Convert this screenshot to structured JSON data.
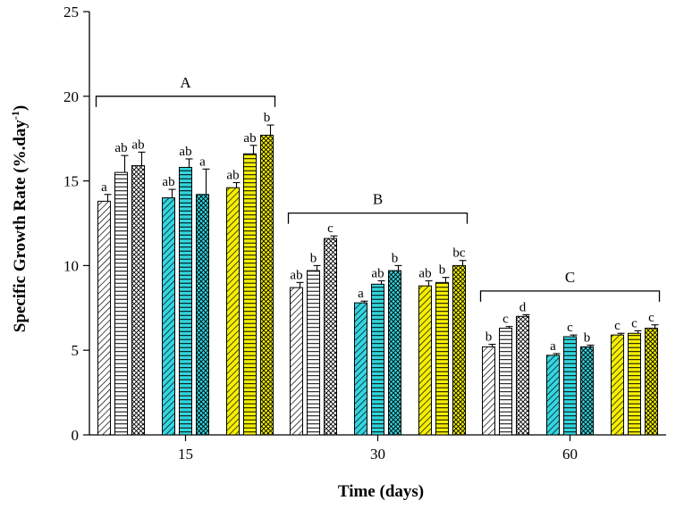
{
  "chart_data": {
    "type": "bar",
    "title": "",
    "xlabel": "Time (days)",
    "ylabel": "Specific Growth Rate (%.day",
    "ylabel_superscript": "-1",
    "ylabel_suffix": ")",
    "ylim": [
      0,
      25
    ],
    "yticks": [
      0,
      5,
      10,
      15,
      20,
      25
    ],
    "categories": [
      "15",
      "30",
      "60"
    ],
    "series": [
      {
        "name": "white-diagonal",
        "fill": "#ffffff",
        "pattern": "diagonal",
        "values": [
          13.8,
          8.7,
          5.2
        ],
        "errors": [
          0.4,
          0.3,
          0.15
        ],
        "labels": [
          "a",
          "ab",
          "b"
        ]
      },
      {
        "name": "white-horizontal",
        "fill": "#ffffff",
        "pattern": "horizontal",
        "values": [
          15.5,
          9.7,
          6.3
        ],
        "errors": [
          1.0,
          0.3,
          0.1
        ],
        "labels": [
          "ab",
          "b",
          "c"
        ]
      },
      {
        "name": "white-crosshatch",
        "fill": "#ffffff",
        "pattern": "crosshatch",
        "values": [
          15.9,
          11.6,
          7.0
        ],
        "errors": [
          0.8,
          0.15,
          0.1
        ],
        "labels": [
          "ab",
          "c",
          "d"
        ]
      },
      {
        "name": "cyan-diagonal",
        "fill": "#33d6e0",
        "pattern": "diagonal",
        "values": [
          14.0,
          7.8,
          4.7
        ],
        "errors": [
          0.5,
          0.1,
          0.1
        ],
        "labels": [
          "ab",
          "a",
          "a"
        ]
      },
      {
        "name": "cyan-horizontal",
        "fill": "#33d6e0",
        "pattern": "horizontal",
        "values": [
          15.8,
          8.9,
          5.8
        ],
        "errors": [
          0.5,
          0.2,
          0.1
        ],
        "labels": [
          "ab",
          "ab",
          "c"
        ]
      },
      {
        "name": "cyan-crosshatch",
        "fill": "#33d6e0",
        "pattern": "crosshatch",
        "values": [
          14.2,
          9.7,
          5.2
        ],
        "errors": [
          1.5,
          0.3,
          0.1
        ],
        "labels": [
          "a",
          "b",
          "b"
        ]
      },
      {
        "name": "yellow-diagonal",
        "fill": "#f5f000",
        "pattern": "diagonal",
        "values": [
          14.6,
          8.8,
          5.9
        ],
        "errors": [
          0.3,
          0.3,
          0.1
        ],
        "labels": [
          "ab",
          "ab",
          "c"
        ]
      },
      {
        "name": "yellow-horizontal",
        "fill": "#f5f000",
        "pattern": "horizontal",
        "values": [
          16.6,
          9.0,
          6.0
        ],
        "errors": [
          0.5,
          0.3,
          0.15
        ],
        "labels": [
          "ab",
          "b",
          "c"
        ]
      },
      {
        "name": "yellow-crosshatch",
        "fill": "#f5f000",
        "pattern": "crosshatch",
        "values": [
          17.7,
          10.0,
          6.3
        ],
        "errors": [
          0.6,
          0.3,
          0.2
        ],
        "labels": [
          "b",
          "bc",
          "c"
        ]
      }
    ],
    "group_brackets": [
      {
        "label": "A",
        "level": 20.0
      },
      {
        "label": "B",
        "level": 13.1
      },
      {
        "label": "C",
        "level": 8.5
      }
    ],
    "grid": false,
    "legend": "none"
  }
}
